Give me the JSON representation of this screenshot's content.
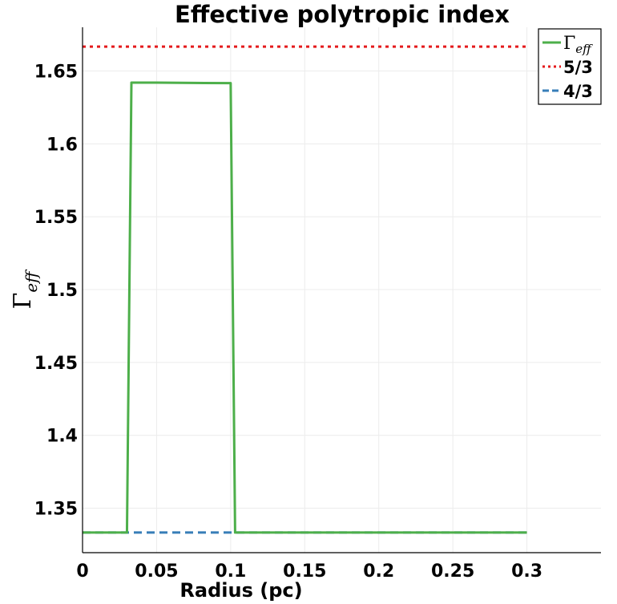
{
  "chart_data": {
    "type": "line",
    "title": "Effective polytropic index",
    "xlabel": "Radius (pc)",
    "ylabel": {
      "base": "Γ",
      "subscript": "eff"
    },
    "xlim": [
      0,
      0.35
    ],
    "ylim": [
      1.3195,
      1.68
    ],
    "x_ticks": [
      0,
      0.05,
      0.1,
      0.15,
      0.2,
      0.25,
      0.3
    ],
    "x_tick_labels": [
      "0",
      "0.05",
      "0.1",
      "0.15",
      "0.2",
      "0.25",
      "0.3"
    ],
    "y_ticks": [
      1.35,
      1.4,
      1.45,
      1.5,
      1.55,
      1.6,
      1.65
    ],
    "y_tick_labels": [
      "1.35",
      "1.4",
      "1.45",
      "1.5",
      "1.55",
      "1.6",
      "1.65"
    ],
    "grid": true,
    "legend_position": "top-right",
    "series": [
      {
        "name": "Γeff",
        "legend_label": {
          "base": "Γ",
          "subscript": "eff"
        },
        "color": "#4daf4a",
        "style": "solid",
        "x": [
          0,
          0.03,
          0.033,
          0.05,
          0.075,
          0.1,
          0.103,
          0.15,
          0.2,
          0.25,
          0.3
        ],
        "y": [
          1.3333,
          1.3333,
          1.642,
          1.642,
          1.6418,
          1.6417,
          1.3333,
          1.3333,
          1.3333,
          1.3333,
          1.3333
        ]
      },
      {
        "name": "5/3",
        "color": "#e41a1c",
        "style": "dotted",
        "x": [
          0,
          0.3
        ],
        "y": [
          1.6667,
          1.6667
        ]
      },
      {
        "name": "4/3",
        "color": "#377eb8",
        "style": "dashed",
        "x": [
          0,
          0.3
        ],
        "y": [
          1.3333,
          1.3333
        ]
      }
    ]
  }
}
